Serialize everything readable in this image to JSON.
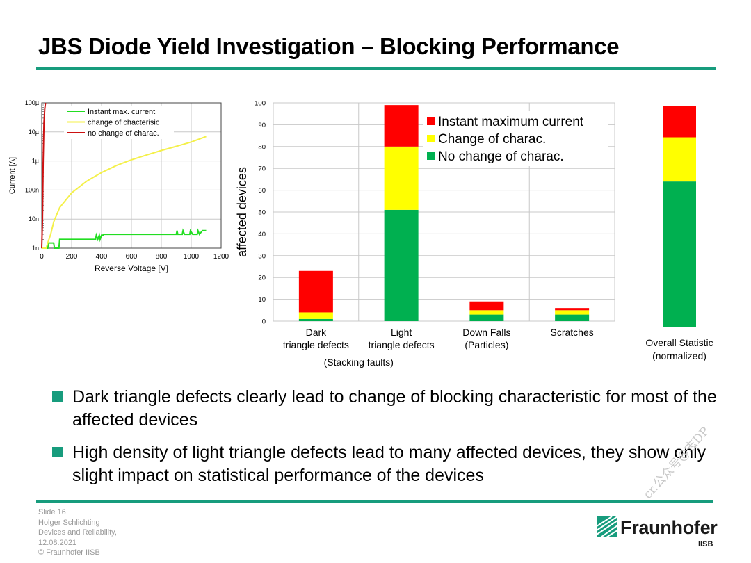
{
  "title": "JBS Diode Yield Investigation – Blocking Performance",
  "colors": {
    "accent": "#179c7d",
    "red": "#ff0000",
    "yellow": "#ffff00",
    "green": "#00b050"
  },
  "chart_data": [
    {
      "type": "line",
      "xlabel": "Reverse Voltage [V]",
      "ylabel": "Current [A]",
      "xlim": [
        0,
        1200
      ],
      "ylim_log": [
        "1n",
        "100µ"
      ],
      "xticks": [
        "0",
        "200",
        "400",
        "600",
        "800",
        "1000",
        "1200"
      ],
      "yticks": [
        "1n",
        "10n",
        "100n",
        "1µ",
        "10µ",
        "100µ"
      ],
      "yscale": "log",
      "grid": true,
      "legend_placement": "top-left",
      "series": [
        {
          "name": "Instant max. current",
          "color": "#22dd22",
          "points": [
            [
              0,
              1e-09
            ],
            [
              40,
              1e-09
            ],
            [
              45,
              1.5e-09
            ],
            [
              80,
              1.5e-09
            ],
            [
              85,
              1e-09
            ],
            [
              115,
              1e-09
            ],
            [
              120,
              2e-09
            ],
            [
              360,
              2e-09
            ],
            [
              365,
              2.8e-09
            ],
            [
              375,
              2e-09
            ],
            [
              385,
              2.8e-09
            ],
            [
              390,
              2e-09
            ],
            [
              400,
              2.8e-09
            ],
            [
              410,
              2.8e-09
            ],
            [
              415,
              3e-09
            ],
            [
              900,
              3e-09
            ],
            [
              905,
              4e-09
            ],
            [
              910,
              3e-09
            ],
            [
              940,
              3e-09
            ],
            [
              945,
              4e-09
            ],
            [
              955,
              3e-09
            ],
            [
              990,
              3e-09
            ],
            [
              995,
              4e-09
            ],
            [
              1010,
              3e-09
            ],
            [
              1040,
              3e-09
            ],
            [
              1045,
              4e-09
            ],
            [
              1055,
              3e-09
            ],
            [
              1075,
              4e-09
            ],
            [
              1100,
              4e-09
            ]
          ]
        },
        {
          "name": "change of chacterisic",
          "color": "#f4f04a",
          "points": [
            [
              0,
              1e-09
            ],
            [
              30,
              1e-09
            ],
            [
              40,
              1.5e-09
            ],
            [
              60,
              3e-09
            ],
            [
              80,
              8e-09
            ],
            [
              120,
              2.5e-08
            ],
            [
              200,
              8e-08
            ],
            [
              300,
              2e-07
            ],
            [
              400,
              4e-07
            ],
            [
              500,
              7e-07
            ],
            [
              600,
              1.1e-06
            ],
            [
              700,
              1.6e-06
            ],
            [
              800,
              2.3e-06
            ],
            [
              900,
              3.2e-06
            ],
            [
              1000,
              4.5e-06
            ],
            [
              1100,
              7e-06
            ]
          ]
        },
        {
          "name": "no change of charac.",
          "color": "#cc1111",
          "points": [
            [
              0,
              1e-09
            ],
            [
              5,
              1e-08
            ],
            [
              10,
              1e-06
            ],
            [
              15,
              2e-05
            ],
            [
              20,
              6e-05
            ],
            [
              25,
              0.0001
            ]
          ]
        }
      ]
    },
    {
      "type": "bar",
      "stacked": true,
      "ylabel": "affected devices",
      "ylim": [
        0,
        100
      ],
      "yticks": [
        "0",
        "10",
        "20",
        "30",
        "40",
        "50",
        "60",
        "70",
        "80",
        "90",
        "100"
      ],
      "grid": true,
      "legend_placement": "top-right",
      "categories": [
        [
          "Dark",
          "triangle defects"
        ],
        [
          "Light",
          "triangle defects"
        ],
        [
          "Down Falls",
          "(Particles)"
        ],
        [
          "Scratches"
        ]
      ],
      "group_label": "(Stacking faults)",
      "series": [
        {
          "name": "No change of charac.",
          "color": "#00b050",
          "values": [
            1,
            51,
            3,
            3
          ]
        },
        {
          "name": "Change of charac.",
          "color": "#ffff00",
          "values": [
            3,
            29,
            2,
            2
          ]
        },
        {
          "name": "Instant maximum current",
          "color": "#ff0000",
          "values": [
            19,
            19,
            4,
            1
          ]
        }
      ]
    },
    {
      "type": "bar",
      "stacked": true,
      "categories": [
        [
          "Overall Statistic",
          "(normalized)"
        ]
      ],
      "series": [
        {
          "name": "No change of charac.",
          "color": "#00b050",
          "values": [
            66
          ]
        },
        {
          "name": "Change of charac.",
          "color": "#ffff00",
          "values": [
            20
          ]
        },
        {
          "name": "Instant maximum current",
          "color": "#ff0000",
          "values": [
            14
          ]
        }
      ]
    }
  ],
  "bullets": [
    "Dark triangle defects clearly lead to change of blocking characteristic for most of the affected devices",
    "High density of light triangle defects lead to many affected devices, they show only slight impact on statistical performance of the devices"
  ],
  "footer": {
    "slide": "Slide 16",
    "author": "Holger Schlichting",
    "event": "Devices and Reliability,",
    "date": "12.08.2021",
    "copyright": "© Fraunhofer IISB"
  },
  "logo": {
    "name": "Fraunhofer",
    "institute": "IISB"
  },
  "watermark": "cr.公众号@志DP"
}
